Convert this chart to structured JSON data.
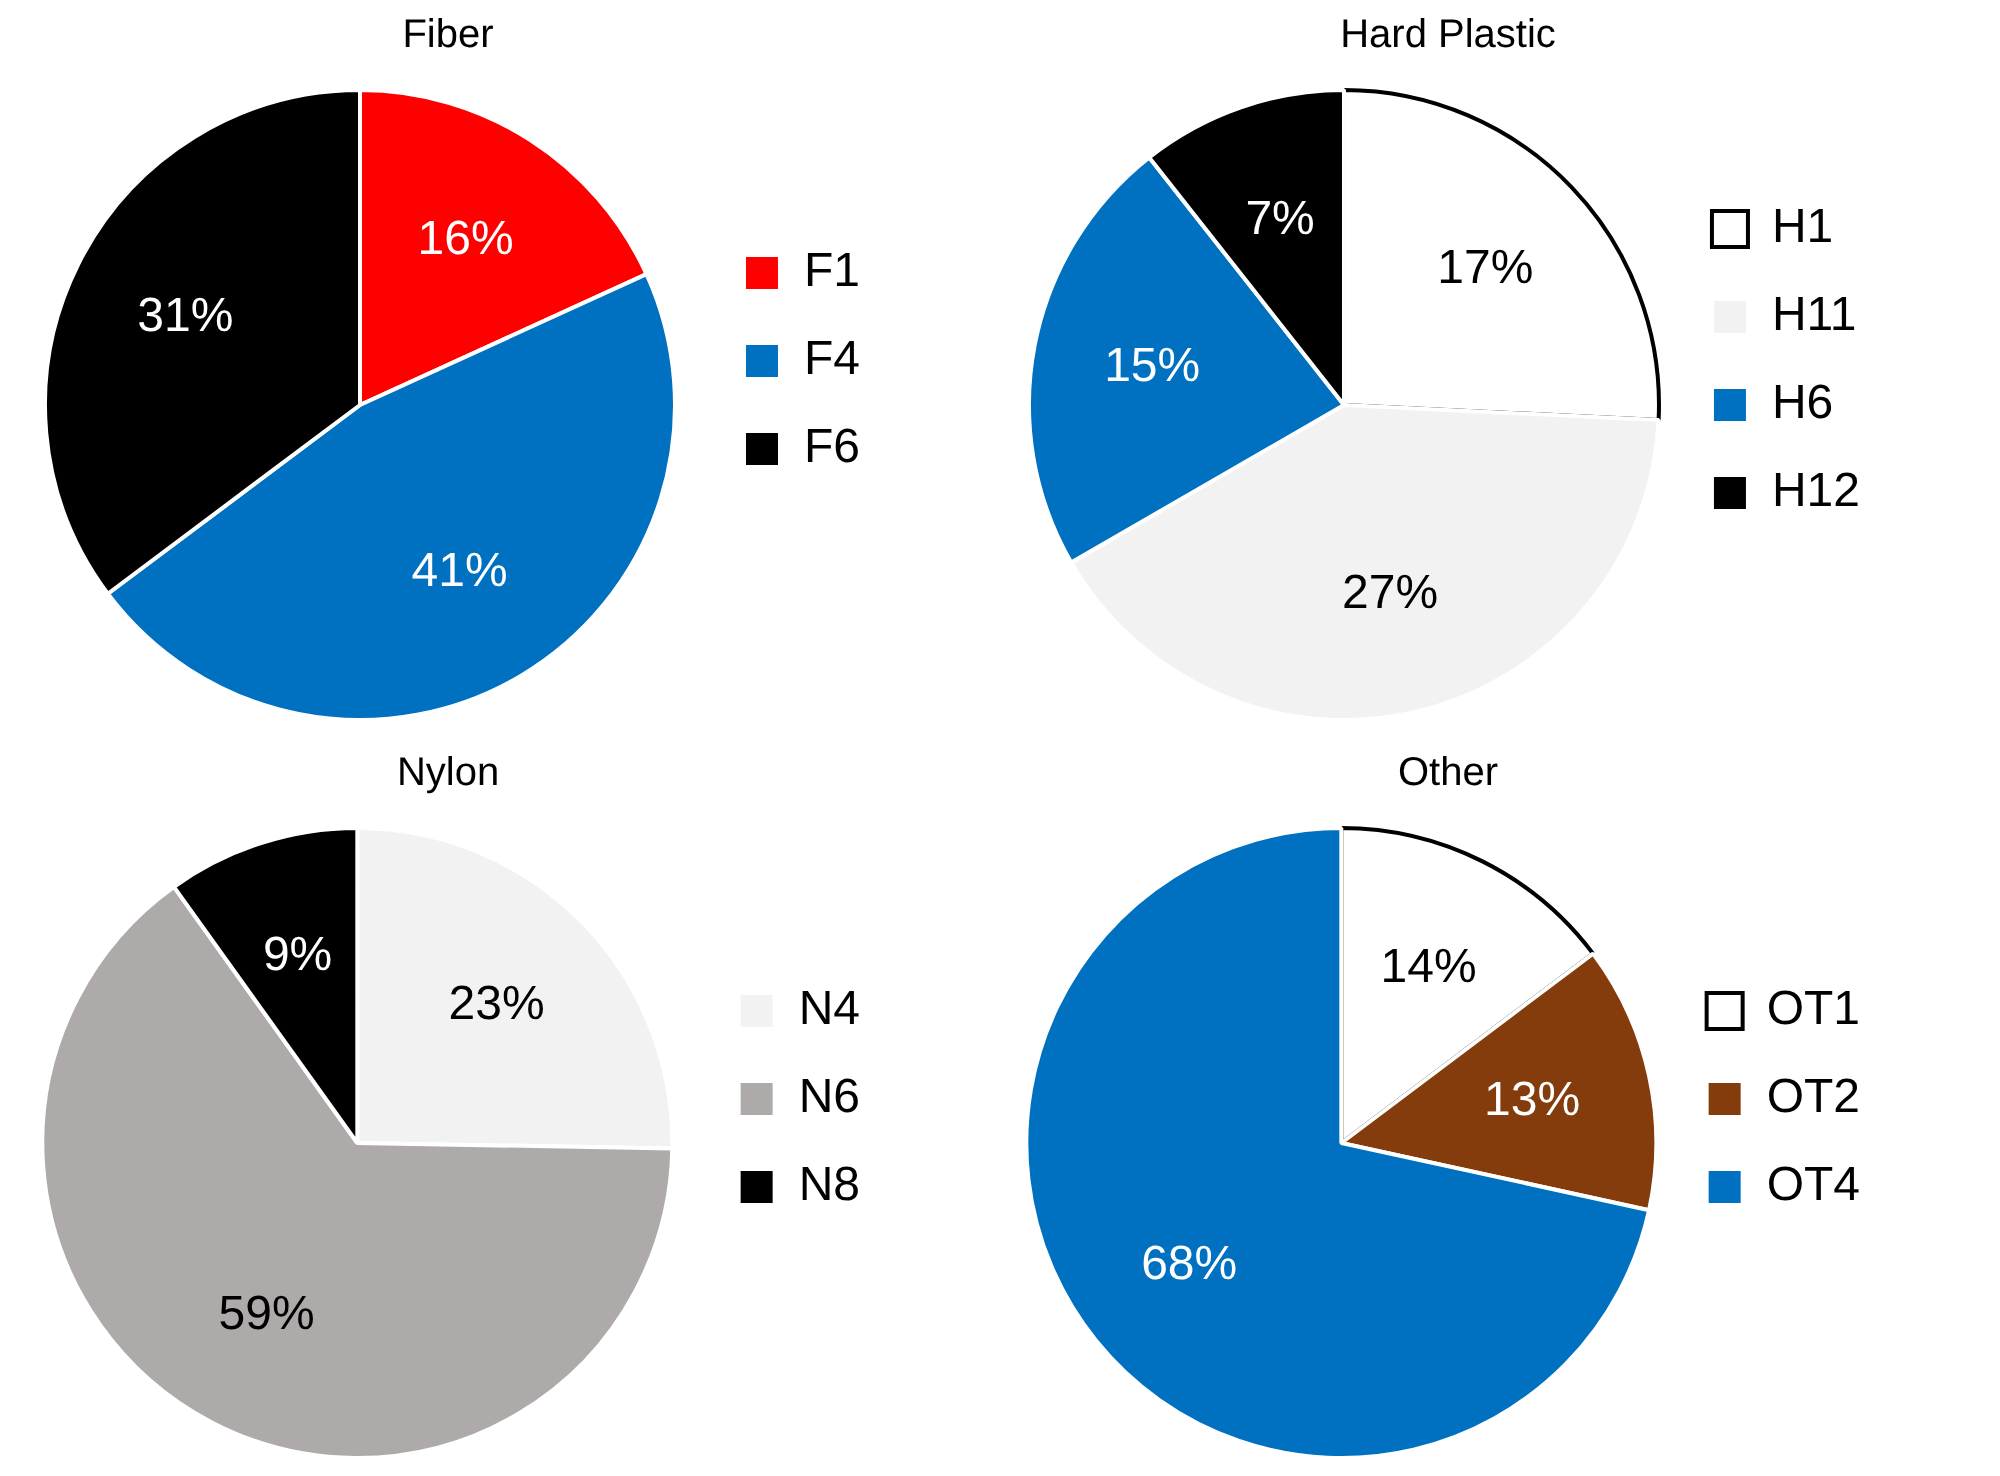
{
  "chart_data": [
    {
      "type": "pie",
      "title": "Fiber",
      "categories": [
        "F1",
        "F4",
        "F6"
      ],
      "values": [
        16,
        41,
        31
      ],
      "colors": [
        "#ff0000",
        "#0070c0",
        "#000000"
      ],
      "value_labels": [
        "16%",
        "41%",
        "31%"
      ],
      "legend": "right"
    },
    {
      "type": "pie",
      "title": "Hard Plastic",
      "categories": [
        "H1",
        "H11",
        "H6",
        "H12"
      ],
      "values": [
        17,
        27,
        15,
        7
      ],
      "colors": [
        "#ffffff",
        "#f2f2f2",
        "#0070c0",
        "#000000"
      ],
      "value_labels": [
        "17%",
        "27%",
        "15%",
        "7%"
      ],
      "legend": "right"
    },
    {
      "type": "pie",
      "title": "Nylon",
      "categories": [
        "N4",
        "N6",
        "N8"
      ],
      "values": [
        23,
        59,
        9
      ],
      "colors": [
        "#f2f2f2",
        "#aeaaaa",
        "#000000"
      ],
      "value_labels": [
        "23%",
        "59%",
        "9%"
      ],
      "legend": "right"
    },
    {
      "type": "pie",
      "title": "Other",
      "categories": [
        "OT1",
        "OT2",
        "OT4"
      ],
      "values": [
        14,
        13,
        68
      ],
      "colors": [
        "#ffffff",
        "#843c0c",
        "#0070c0"
      ],
      "value_labels": [
        "14%",
        "13%",
        "68%"
      ],
      "legend": "right"
    }
  ]
}
